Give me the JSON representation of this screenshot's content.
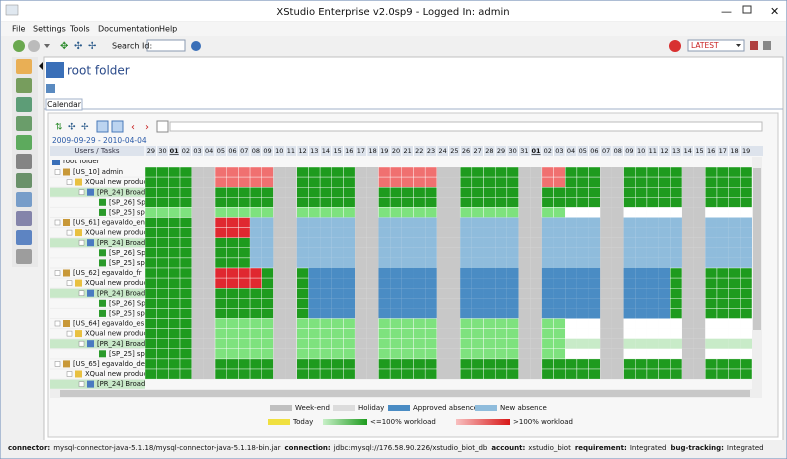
{
  "window": {
    "title": "XStudio Enterprise v2.0sp9 - Logged In: admin"
  },
  "menu": [
    "File",
    "Settings",
    "Tools",
    "Documentation",
    "Help"
  ],
  "toolbar": {
    "search_label": "Search Id:",
    "version": "LATEST"
  },
  "header": {
    "title": "root folder"
  },
  "tabs": [
    "Calendar"
  ],
  "calendar": {
    "date_range": "2009-09-29 - 2010-04-04",
    "corner": "Users / Tasks",
    "root": "root folder",
    "days": [
      "29",
      "30",
      "01",
      "02",
      "03",
      "04",
      "05",
      "06",
      "07",
      "08",
      "09",
      "10",
      "11",
      "12",
      "13",
      "14",
      "15",
      "16",
      "17",
      "18",
      "19",
      "20",
      "21",
      "22",
      "23",
      "24",
      "25",
      "26",
      "27",
      "28",
      "29",
      "30",
      "31",
      "01",
      "02",
      "03",
      "04",
      "05",
      "06",
      "07",
      "08",
      "09",
      "10",
      "11",
      "12",
      "13",
      "14",
      "15",
      "16",
      "17",
      "18",
      "19"
    ],
    "users": [
      {
        "label": "[US_10] admin",
        "children": [
          {
            "label": "XQual new product",
            "children": [
              {
                "label": "[PR_24] Broadc",
                "children": [
                  {
                    "label": "[SP_26] Sp"
                  },
                  {
                    "label": "[SP_25] spr"
                  }
                ]
              }
            ]
          }
        ]
      },
      {
        "label": "[US_61] egavaldo_en",
        "children": [
          {
            "label": "XQual new product",
            "children": [
              {
                "label": "[PR_24] Broadc",
                "children": [
                  {
                    "label": "[SP_26] Sp"
                  },
                  {
                    "label": "[SP_25] spr"
                  }
                ]
              }
            ]
          }
        ]
      },
      {
        "label": "[US_62] egavaldo_fr",
        "children": [
          {
            "label": "XQual new product",
            "children": [
              {
                "label": "[PR_24] Broadc",
                "children": [
                  {
                    "label": "[SP_26] Sp"
                  },
                  {
                    "label": "[SP_25] spr"
                  }
                ]
              }
            ]
          }
        ]
      },
      {
        "label": "[US_64] egavaldo_es",
        "children": [
          {
            "label": "XQual new product",
            "children": [
              {
                "label": "[PR_24] Broadc",
                "children": [
                  {
                    "label": "[SP_25] spr"
                  }
                ]
              }
            ]
          }
        ]
      },
      {
        "label": "[US_65] egavaldo_de",
        "children": [
          {
            "label": "XQual new product",
            "children": [
              {
                "label": "[PR_24] Broadc"
              }
            ]
          }
        ]
      }
    ]
  },
  "legend": [
    "Week-end",
    "Holiday",
    "Approved absence",
    "New absence",
    "Today",
    "<=100% workload",
    ">100% workload"
  ],
  "status": [
    {
      "label": "connector:",
      "value": "mysql-connector-java-5.1.18/mysql-connector-java-5.1.18-bin.jar"
    },
    {
      "label": "connection:",
      "value": "jdbc:mysql://176.58.90.226/xstudio_biot_db"
    },
    {
      "label": "account:",
      "value": "xstudio_biot"
    },
    {
      "label": "requirement:",
      "value": "Integrated"
    },
    {
      "label": "bug-tracking:",
      "value": "Integrated"
    }
  ]
}
